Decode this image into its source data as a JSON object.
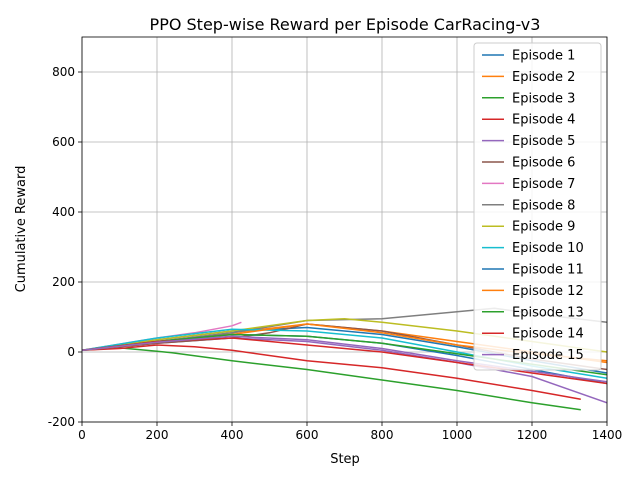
{
  "chart_data": {
    "type": "line",
    "title": "PPO Step-wise Reward per Episode CarRacing-v3",
    "xlabel": "Step",
    "ylabel": "Cumulative Reward",
    "xlim": [
      0,
      1400
    ],
    "ylim": [
      -200,
      900
    ],
    "xticks": [
      0,
      200,
      400,
      600,
      800,
      1000,
      1200,
      1400
    ],
    "yticks": [
      -200,
      0,
      200,
      400,
      600,
      800
    ],
    "grid": true,
    "legend_position": "top-right",
    "series": [
      {
        "name": "Episode 1",
        "color": "#1f77b4",
        "points": [
          [
            0,
            5
          ],
          [
            200,
            35
          ],
          [
            400,
            60
          ],
          [
            600,
            70
          ],
          [
            800,
            50
          ],
          [
            1000,
            15
          ],
          [
            1200,
            -25
          ],
          [
            1400,
            -60
          ]
        ]
      },
      {
        "name": "Episode 2",
        "color": "#ff7f0e",
        "points": [
          [
            0,
            5
          ],
          [
            200,
            30
          ],
          [
            400,
            55
          ],
          [
            600,
            80
          ],
          [
            700,
            70
          ],
          [
            800,
            60
          ],
          [
            1000,
            30
          ],
          [
            1200,
            0
          ],
          [
            1400,
            -30
          ]
        ]
      },
      {
        "name": "Episode 3",
        "color": "#2ca02c",
        "points": [
          [
            0,
            5
          ],
          [
            100,
            12
          ],
          [
            200,
            2
          ],
          [
            240,
            -2
          ],
          [
            400,
            -25
          ],
          [
            600,
            -50
          ],
          [
            800,
            -80
          ],
          [
            1000,
            -110
          ],
          [
            1200,
            -145
          ],
          [
            1330,
            -165
          ]
        ]
      },
      {
        "name": "Episode 4",
        "color": "#d62728",
        "points": [
          [
            0,
            5
          ],
          [
            100,
            10
          ],
          [
            200,
            20
          ],
          [
            300,
            15
          ],
          [
            400,
            5
          ],
          [
            600,
            -25
          ],
          [
            800,
            -45
          ],
          [
            1000,
            -75
          ],
          [
            1200,
            -110
          ],
          [
            1330,
            -135
          ]
        ]
      },
      {
        "name": "Episode 5",
        "color": "#9467bd",
        "points": [
          [
            0,
            5
          ],
          [
            200,
            25
          ],
          [
            400,
            40
          ],
          [
            600,
            30
          ],
          [
            800,
            5
          ],
          [
            1000,
            -30
          ],
          [
            1200,
            -70
          ],
          [
            1400,
            -145
          ]
        ]
      },
      {
        "name": "Episode 6",
        "color": "#8c564b",
        "points": [
          [
            0,
            5
          ],
          [
            200,
            25
          ],
          [
            400,
            40
          ],
          [
            500,
            55
          ],
          [
            600,
            80
          ],
          [
            800,
            60
          ],
          [
            1000,
            20
          ],
          [
            1200,
            -20
          ],
          [
            1400,
            -50
          ]
        ]
      },
      {
        "name": "Episode 7",
        "color": "#e377c2",
        "points": [
          [
            0,
            5
          ],
          [
            200,
            40
          ],
          [
            300,
            55
          ],
          [
            350,
            65
          ],
          [
            400,
            75
          ],
          [
            425,
            85
          ]
        ]
      },
      {
        "name": "Episode 8",
        "color": "#7f7f7f",
        "points": [
          [
            0,
            5
          ],
          [
            200,
            30
          ],
          [
            400,
            55
          ],
          [
            600,
            90
          ],
          [
            800,
            95
          ],
          [
            1000,
            115
          ],
          [
            1100,
            125
          ],
          [
            1200,
            110
          ],
          [
            1400,
            85
          ]
        ]
      },
      {
        "name": "Episode 9",
        "color": "#bcbd22",
        "points": [
          [
            0,
            5
          ],
          [
            200,
            35
          ],
          [
            400,
            60
          ],
          [
            600,
            90
          ],
          [
            700,
            95
          ],
          [
            800,
            85
          ],
          [
            1000,
            60
          ],
          [
            1200,
            30
          ],
          [
            1400,
            0
          ]
        ]
      },
      {
        "name": "Episode 10",
        "color": "#17becf",
        "points": [
          [
            0,
            5
          ],
          [
            200,
            40
          ],
          [
            400,
            65
          ],
          [
            600,
            60
          ],
          [
            800,
            40
          ],
          [
            1000,
            0
          ],
          [
            1200,
            -40
          ],
          [
            1400,
            -75
          ]
        ]
      },
      {
        "name": "Episode 11",
        "color": "#1f77b4",
        "points": [
          [
            0,
            5
          ],
          [
            200,
            30
          ],
          [
            400,
            50
          ],
          [
            600,
            45
          ],
          [
            800,
            25
          ],
          [
            1000,
            -10
          ],
          [
            1200,
            -50
          ],
          [
            1400,
            -90
          ]
        ]
      },
      {
        "name": "Episode 12",
        "color": "#ff7f0e",
        "points": [
          [
            0,
            5
          ],
          [
            200,
            28
          ],
          [
            400,
            50
          ],
          [
            600,
            80
          ],
          [
            800,
            55
          ],
          [
            1000,
            20
          ],
          [
            1200,
            -5
          ],
          [
            1400,
            -25
          ]
        ]
      },
      {
        "name": "Episode 13",
        "color": "#2ca02c",
        "points": [
          [
            0,
            5
          ],
          [
            200,
            30
          ],
          [
            400,
            50
          ],
          [
            600,
            45
          ],
          [
            800,
            25
          ],
          [
            1000,
            -5
          ],
          [
            1200,
            -35
          ],
          [
            1400,
            -65
          ]
        ]
      },
      {
        "name": "Episode 14",
        "color": "#d62728",
        "points": [
          [
            0,
            5
          ],
          [
            200,
            30
          ],
          [
            400,
            40
          ],
          [
            600,
            20
          ],
          [
            800,
            0
          ],
          [
            1000,
            -30
          ],
          [
            1200,
            -60
          ],
          [
            1400,
            -90
          ]
        ]
      },
      {
        "name": "Episode 15",
        "color": "#9467bd",
        "points": [
          [
            0,
            5
          ],
          [
            200,
            28
          ],
          [
            400,
            45
          ],
          [
            600,
            35
          ],
          [
            800,
            10
          ],
          [
            1000,
            -25
          ],
          [
            1200,
            -55
          ],
          [
            1400,
            -85
          ]
        ]
      }
    ]
  }
}
